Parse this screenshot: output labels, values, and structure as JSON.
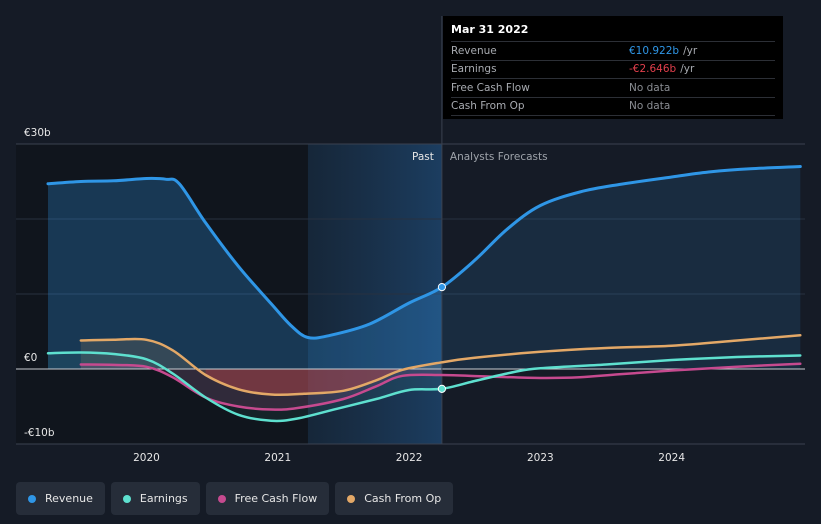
{
  "chart_data": {
    "type": "line",
    "x_unit": "year",
    "x_range": [
      2019.25,
      2024.98
    ],
    "ylim": [
      -10,
      30
    ],
    "y_ticks": [
      {
        "value": 30,
        "label": "€30b"
      },
      {
        "value": 0,
        "label": "€0"
      },
      {
        "value": -10,
        "label": "-€10b"
      }
    ],
    "x_ticks": [
      {
        "value": 2020,
        "label": "2020"
      },
      {
        "value": 2021,
        "label": "2021"
      },
      {
        "value": 2022,
        "label": "2022"
      },
      {
        "value": 2023,
        "label": "2023"
      },
      {
        "value": 2024,
        "label": "2024"
      }
    ],
    "past_label": "Past",
    "forecast_label": "Analysts Forecasts",
    "divider_x": 2022.25,
    "highlight_start_x": 2021.23,
    "series": [
      {
        "name": "Revenue",
        "color": "#2f96e6",
        "points": [
          [
            2019.25,
            24.7
          ],
          [
            2019.5,
            25.0
          ],
          [
            2019.75,
            25.1
          ],
          [
            2020.0,
            25.4
          ],
          [
            2020.15,
            25.3
          ],
          [
            2020.25,
            24.7
          ],
          [
            2020.45,
            19.5
          ],
          [
            2020.7,
            13.7
          ],
          [
            2020.95,
            8.7
          ],
          [
            2021.1,
            5.8
          ],
          [
            2021.23,
            4.2
          ],
          [
            2021.4,
            4.5
          ],
          [
            2021.7,
            6.0
          ],
          [
            2022.0,
            8.8
          ],
          [
            2022.25,
            10.92
          ],
          [
            2022.5,
            14.5
          ],
          [
            2022.75,
            18.7
          ],
          [
            2023.0,
            21.8
          ],
          [
            2023.3,
            23.6
          ],
          [
            2023.6,
            24.6
          ],
          [
            2024.0,
            25.6
          ],
          [
            2024.3,
            26.3
          ],
          [
            2024.6,
            26.7
          ],
          [
            2024.98,
            27.0
          ]
        ]
      },
      {
        "name": "Earnings",
        "color": "#5ee0cf",
        "points": [
          [
            2019.25,
            2.1
          ],
          [
            2019.5,
            2.2
          ],
          [
            2019.75,
            2.0
          ],
          [
            2020.0,
            1.3
          ],
          [
            2020.2,
            -0.6
          ],
          [
            2020.45,
            -3.8
          ],
          [
            2020.7,
            -6.1
          ],
          [
            2020.95,
            -6.9
          ],
          [
            2021.15,
            -6.6
          ],
          [
            2021.45,
            -5.3
          ],
          [
            2021.75,
            -4.0
          ],
          [
            2022.0,
            -2.8
          ],
          [
            2022.25,
            -2.646
          ],
          [
            2022.5,
            -1.6
          ],
          [
            2022.8,
            -0.4
          ],
          [
            2023.0,
            0.1
          ],
          [
            2023.5,
            0.6
          ],
          [
            2024.0,
            1.2
          ],
          [
            2024.5,
            1.6
          ],
          [
            2024.98,
            1.8
          ]
        ]
      },
      {
        "name": "Free Cash Flow",
        "color": "#c64a8f",
        "points": [
          [
            2019.5,
            0.6
          ],
          [
            2019.75,
            0.55
          ],
          [
            2020.0,
            0.3
          ],
          [
            2020.2,
            -1.1
          ],
          [
            2020.45,
            -3.8
          ],
          [
            2020.7,
            -5.0
          ],
          [
            2020.95,
            -5.4
          ],
          [
            2021.15,
            -5.2
          ],
          [
            2021.5,
            -4.0
          ],
          [
            2021.75,
            -2.3
          ],
          [
            2021.95,
            -0.9
          ],
          [
            2022.25,
            -0.8
          ],
          [
            2022.6,
            -1.0
          ],
          [
            2023.0,
            -1.2
          ],
          [
            2023.3,
            -1.1
          ],
          [
            2023.6,
            -0.7
          ],
          [
            2024.0,
            -0.2
          ],
          [
            2024.5,
            0.3
          ],
          [
            2024.98,
            0.7
          ]
        ]
      },
      {
        "name": "Cash From Op",
        "color": "#e3a867",
        "points": [
          [
            2019.5,
            3.8
          ],
          [
            2019.75,
            3.9
          ],
          [
            2020.0,
            3.9
          ],
          [
            2020.2,
            2.5
          ],
          [
            2020.45,
            -0.8
          ],
          [
            2020.7,
            -2.7
          ],
          [
            2020.95,
            -3.4
          ],
          [
            2021.2,
            -3.3
          ],
          [
            2021.5,
            -2.9
          ],
          [
            2021.75,
            -1.5
          ],
          [
            2021.95,
            -0.1
          ],
          [
            2022.25,
            0.9
          ],
          [
            2022.5,
            1.5
          ],
          [
            2023.0,
            2.3
          ],
          [
            2023.5,
            2.8
          ],
          [
            2024.0,
            3.1
          ],
          [
            2024.5,
            3.8
          ],
          [
            2024.98,
            4.5
          ]
        ]
      }
    ],
    "markers": [
      {
        "series": "Revenue",
        "x": 2022.25,
        "y": 10.92
      },
      {
        "series": "Earnings",
        "x": 2022.25,
        "y": -2.646
      }
    ]
  },
  "tooltip": {
    "date": "Mar 31 2022",
    "rows": [
      {
        "label": "Revenue",
        "value": "€10.922b",
        "unit": "/yr",
        "color": "#2f96e6"
      },
      {
        "label": "Earnings",
        "value": "-€2.646b",
        "unit": "/yr",
        "color": "#e23f4c"
      },
      {
        "label": "Free Cash Flow",
        "value": "No data",
        "unit": "",
        "color": ""
      },
      {
        "label": "Cash From Op",
        "value": "No data",
        "unit": "",
        "color": ""
      }
    ]
  },
  "legend": [
    {
      "label": "Revenue",
      "color": "#2f96e6"
    },
    {
      "label": "Earnings",
      "color": "#5ee0cf"
    },
    {
      "label": "Free Cash Flow",
      "color": "#c64a8f"
    },
    {
      "label": "Cash From Op",
      "color": "#e3a867"
    }
  ]
}
